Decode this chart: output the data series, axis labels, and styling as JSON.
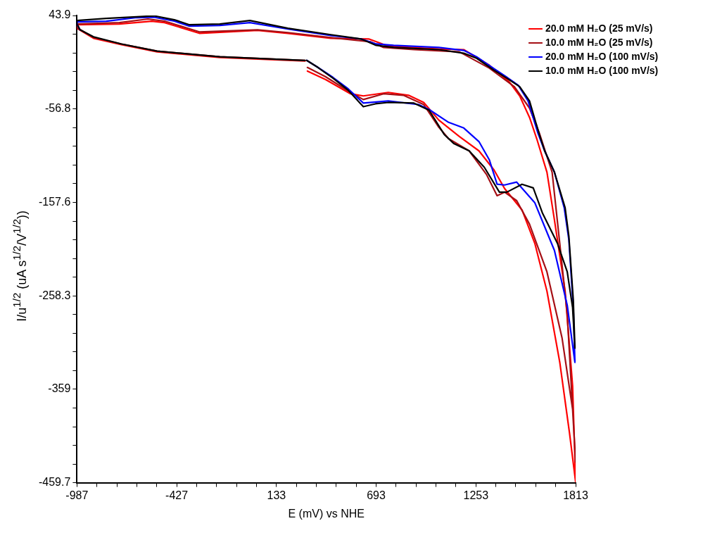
{
  "chart_data": {
    "type": "line",
    "xlabel": "E (mV) vs NHE",
    "ylabel": "I/u$^{1/2}$ (uA s$^{1/2}$/V$^{1/2}$))",
    "xlim": [
      -987,
      1813
    ],
    "ylim": [
      -459.7,
      43.9
    ],
    "xticks": [
      -987,
      {
        "value": -875,
        "label": null
      },
      {
        "value": -763,
        "label": null
      },
      {
        "value": -651,
        "label": null
      },
      {
        "value": -539,
        "label": null
      },
      -427,
      {
        "value": -315,
        "label": null
      },
      {
        "value": -203,
        "label": null
      },
      {
        "value": -91,
        "label": null
      },
      {
        "value": 21,
        "label": null
      },
      133,
      {
        "value": 245,
        "label": null
      },
      {
        "value": 357,
        "label": null
      },
      {
        "value": 469,
        "label": null
      },
      {
        "value": 581,
        "label": null
      },
      693,
      {
        "value": 805,
        "label": null
      },
      {
        "value": 917,
        "label": null
      },
      {
        "value": 1029,
        "label": null
      },
      {
        "value": 1141,
        "label": null
      },
      1253,
      {
        "value": 1365,
        "label": null
      },
      {
        "value": 1477,
        "label": null
      },
      {
        "value": 1589,
        "label": null
      },
      {
        "value": 1701,
        "label": null
      },
      1813
    ],
    "yticks": [
      43.9,
      {
        "value": 23.8,
        "label": null
      },
      {
        "value": 3.6,
        "label": null
      },
      {
        "value": -16.5,
        "label": null
      },
      {
        "value": -36.7,
        "label": null
      },
      -56.8,
      {
        "value": -76.9,
        "label": null
      },
      {
        "value": -97.1,
        "label": null
      },
      {
        "value": -117.3,
        "label": null
      },
      {
        "value": -137.4,
        "label": null
      },
      -157.6,
      {
        "value": -177.7,
        "label": null
      },
      {
        "value": -197.9,
        "label": null
      },
      {
        "value": -218.0,
        "label": null
      },
      {
        "value": -238.2,
        "label": null
      },
      -258.3,
      {
        "value": -278.4,
        "label": null
      },
      {
        "value": -298.6,
        "label": null
      },
      {
        "value": -318.7,
        "label": null
      },
      {
        "value": -338.9,
        "label": null
      },
      -359.0,
      {
        "value": -379.1,
        "label": null
      },
      {
        "value": -399.3,
        "label": null
      },
      {
        "value": -419.4,
        "label": null
      },
      {
        "value": -439.6,
        "label": null
      },
      -459.7
    ],
    "grid": false,
    "legend": "top right",
    "marker": "none",
    "line_style": "solid",
    "series": [
      {
        "name": "20.0 mM H₂O (25 mV/s)",
        "color": "#ff0000",
        "x": [
          307,
          409,
          549,
          621,
          761,
          875,
          960,
          1045,
          1160,
          1270,
          1355,
          1414,
          1512,
          1584,
          1652,
          1724,
          1779,
          1813,
          1796,
          1754,
          1694,
          1652,
          1597,
          1554,
          1499,
          1440,
          1329,
          1185,
          1045,
          761,
          651,
          438,
          197,
          27,
          -300,
          -495,
          -567,
          -749,
          -987,
          -987,
          -894,
          -737,
          -537,
          -185,
          294
        ],
        "values": [
          -16.0,
          -25.2,
          -40.5,
          -42.8,
          -39.0,
          -42.1,
          -49.8,
          -68.9,
          -86.6,
          -102.0,
          -122.7,
          -142.6,
          -165.7,
          -201.8,
          -253.2,
          -330.0,
          -406.7,
          -459.0,
          -355.3,
          -253.2,
          -176.4,
          -125.0,
          -90.4,
          -65.9,
          -42.8,
          -27.5,
          -9.8,
          7.1,
          7.8,
          10.9,
          18.6,
          19.3,
          24.7,
          27.8,
          24.7,
          36.2,
          37.8,
          34.7,
          33.9,
          30.1,
          19.3,
          12.4,
          4.7,
          -1.4,
          -5.2
        ]
      },
      {
        "name": "10.0 mM H₂O (25 mV/s)",
        "color": "#a50f15",
        "x": [
          307,
          409,
          536,
          621,
          735,
          846,
          960,
          1045,
          1100,
          1215,
          1312,
          1372,
          1414,
          1482,
          1554,
          1652,
          1737,
          1796,
          1813,
          1766,
          1724,
          1681,
          1609,
          1554,
          1469,
          1329,
          1160,
          905,
          735,
          663,
          438,
          197,
          27,
          -300,
          -495,
          -588,
          -749,
          -987,
          -987,
          -894,
          -737,
          -537,
          -185,
          294
        ],
        "values": [
          -12.1,
          -22.1,
          -37.5,
          -46.7,
          -40.5,
          -42.1,
          -52.1,
          -76.6,
          -88.9,
          -102.0,
          -127.3,
          -150.3,
          -146.5,
          -155.7,
          -181.0,
          -232.5,
          -303.9,
          -380.6,
          -437.4,
          -278.5,
          -201.8,
          -125.0,
          -82.8,
          -55.9,
          -32.9,
          -12.9,
          4.7,
          7.1,
          9.4,
          15.5,
          20.1,
          25.5,
          28.5,
          26.2,
          37.8,
          40.1,
          36.2,
          34.7,
          30.8,
          20.1,
          13.2,
          5.5,
          -0.6,
          -4.5
        ]
      },
      {
        "name": "20.0 mM H₂O (100 mV/s)",
        "color": "#0000ff",
        "x": [
          303,
          366,
          451,
          536,
          621,
          761,
          931,
          990,
          1100,
          1185,
          1270,
          1329,
          1372,
          1414,
          1482,
          1584,
          1694,
          1766,
          1809,
          1800,
          1775,
          1749,
          1694,
          1639,
          1601,
          1546,
          1491,
          1418,
          1351,
          1257,
          1185,
          1045,
          791,
          693,
          608,
          438,
          197,
          -16,
          -185,
          -355,
          -440,
          -554,
          -652,
          -822,
          -987,
          -987,
          -970
        ],
        "values": [
          -4.5,
          -12.1,
          -22.9,
          -35.2,
          -50.5,
          -48.2,
          -52.1,
          -57.4,
          -71.3,
          -77.4,
          -92.0,
          -111.9,
          -138.0,
          -138.8,
          -135.7,
          -158.0,
          -209.4,
          -268.5,
          -330.0,
          -270.9,
          -197.9,
          -163.4,
          -125.0,
          -102.0,
          -82.8,
          -48.2,
          -31.3,
          -21.4,
          -12.9,
          -0.6,
          6.3,
          9.4,
          11.7,
          13.2,
          18.6,
          22.4,
          29.3,
          36.2,
          33.2,
          32.4,
          37.8,
          42.0,
          41.6,
          37.8,
          37.0,
          34.7,
          28.5
        ]
      },
      {
        "name": "10.0 mM H₂O (100 mV/s)",
        "color": "#000000",
        "x": [
          303,
          366,
          451,
          536,
          621,
          689,
          761,
          905,
          990,
          1075,
          1130,
          1215,
          1300,
          1385,
          1427,
          1512,
          1575,
          1626,
          1711,
          1766,
          1796,
          1809,
          1800,
          1775,
          1754,
          1694,
          1639,
          1609,
          1554,
          1499,
          1427,
          1355,
          1257,
          1185,
          1045,
          791,
          693,
          608,
          438,
          197,
          -16,
          -185,
          -355,
          -440,
          -554,
          -652,
          -822,
          -987,
          -987,
          -970,
          -894,
          -737,
          -537,
          -185,
          294
        ],
        "values": [
          -4.5,
          -12.1,
          -23.7,
          -36.7,
          -54.4,
          -51.3,
          -49.8,
          -50.5,
          -58.2,
          -84.3,
          -94.3,
          -102.0,
          -119.6,
          -146.5,
          -146.5,
          -138.0,
          -141.9,
          -168.7,
          -201.8,
          -232.5,
          -270.9,
          -314.6,
          -263.2,
          -194.1,
          -163.4,
          -125.0,
          -102.0,
          -84.3,
          -48.2,
          -32.9,
          -23.7,
          -15.2,
          -2.2,
          3.2,
          7.1,
          9.4,
          11.7,
          18.6,
          23.2,
          30.1,
          38.5,
          34.7,
          33.9,
          39.3,
          43.5,
          42.5,
          40.8,
          38.5,
          34.7,
          28.5,
          20.9,
          13.2,
          5.5,
          -0.6,
          -4.5
        ]
      }
    ]
  }
}
